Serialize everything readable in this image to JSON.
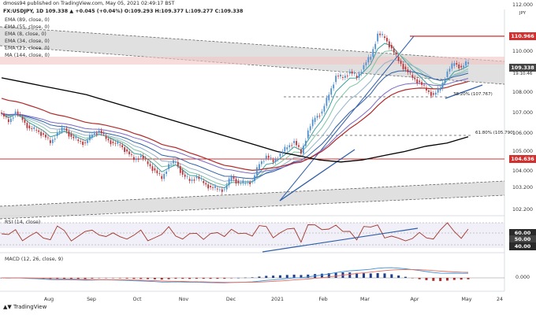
{
  "header": {
    "published": "dmoss94 published on TradingView.com, May 05, 2021 02:49:17 BST",
    "symbol_line": "FX:USDJPY, 1D 109.338 ▲ +0.045 (+0.04%) O:109.293 H:109.377 L:109.277 C:109.338",
    "currency": "JPY"
  },
  "legend": [
    {
      "label": "EMA (89, close, 0)",
      "color": "#7b68c8"
    },
    {
      "label": "EMA (55, close, 0)",
      "color": "#2e5ea8"
    },
    {
      "label": "EMA (8, close, 0)",
      "color": "#39a0a0"
    },
    {
      "label": "EMA (34, close, 0)",
      "color": "#8fb3c8"
    },
    {
      "label": "EMA (21, close, 0)",
      "color": "#7fc4a4"
    },
    {
      "label": "MA (144, close, 0)",
      "color": "#000000"
    }
  ],
  "rsi_label": "RSI (14, close)",
  "macd_label": "MACD (12, 26, close, 9)",
  "chart_data": {
    "type": "line",
    "title": "FX:USDJPY, 1D",
    "price_axis": {
      "ticks": [
        "112.000",
        "111.000",
        "110.000",
        "109.000",
        "108.000",
        "107.000",
        "106.000",
        "105.000",
        "104.000",
        "103.200",
        "102.200"
      ]
    },
    "time_axis": {
      "ticks": [
        "Aug",
        "Sep",
        "Oct",
        "Nov",
        "Dec",
        "2021",
        "Feb",
        "Mar",
        "Apr",
        "May",
        "24"
      ]
    },
    "last_price": "109.338",
    "countdown": "19:10:46",
    "levels": [
      {
        "label": "110.966",
        "color": "#d32f2f"
      },
      {
        "label": "104.636",
        "color": "#d32f2f"
      }
    ],
    "fib_labels": [
      "38.20% (107.767)",
      "61.80% (105.790)"
    ],
    "rsi": {
      "ticks": [
        "60.00",
        "50.00",
        "40.00"
      ],
      "last": "52.86"
    },
    "macd": {
      "ticks": [
        "0.000"
      ]
    },
    "series": [
      {
        "name": "USDJPY close",
        "color": "#444444",
        "values": [
          106.9,
          106.5,
          107.0,
          106.6,
          106.2,
          106.1,
          105.9,
          105.5,
          106.0,
          106.2,
          105.8,
          105.6,
          105.5,
          105.9,
          106.1,
          105.7,
          105.5,
          105.4,
          105.1,
          104.7,
          104.9,
          104.5,
          104.2,
          103.8,
          104.5,
          104.6,
          104.0,
          103.7,
          103.9,
          103.6,
          103.4,
          103.3,
          103.3,
          103.9,
          103.6,
          103.6,
          103.7,
          104.5,
          104.9,
          104.6,
          105.0,
          105.3,
          105.6,
          105.0,
          106.1,
          106.7,
          107.0,
          107.8,
          108.7,
          108.6,
          108.9,
          108.6,
          109.2,
          109.6,
          110.7,
          110.5,
          110.0,
          109.4,
          109.0,
          108.6,
          108.4,
          108.0,
          107.8,
          108.1,
          108.9,
          109.3,
          109.1,
          109.34
        ]
      },
      {
        "name": "MA 144",
        "color": "#000000",
        "values": [
          108.6,
          108.4,
          108.2,
          108.0,
          107.8,
          107.5,
          107.2,
          106.9,
          106.6,
          106.3,
          106.0,
          105.7,
          105.4,
          105.1,
          104.9,
          104.7,
          104.6,
          104.7,
          104.9,
          105.1,
          105.35,
          105.5,
          105.8
        ]
      }
    ]
  }
}
